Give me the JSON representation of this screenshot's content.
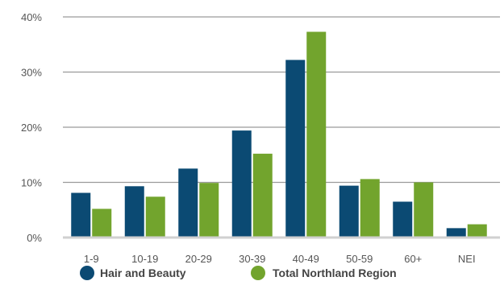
{
  "chart_data": {
    "type": "bar",
    "categories": [
      "1-9",
      "10-19",
      "20-29",
      "30-39",
      "40-49",
      "50-59",
      "60+",
      "NEI"
    ],
    "series": [
      {
        "name": "Hair and Beauty",
        "color": "#0b4a73",
        "values": [
          8.1,
          9.3,
          12.5,
          19.4,
          32.2,
          9.4,
          6.5,
          1.7
        ]
      },
      {
        "name": "Total Northland Region",
        "color": "#72a42d",
        "values": [
          5.2,
          7.4,
          9.9,
          15.2,
          37.3,
          10.6,
          10.0,
          2.4
        ]
      }
    ],
    "y_ticks": [
      "0%",
      "10%",
      "20%",
      "30%",
      "40%"
    ],
    "ylim": [
      0,
      40
    ],
    "grid": true,
    "legend_position": "bottom"
  }
}
